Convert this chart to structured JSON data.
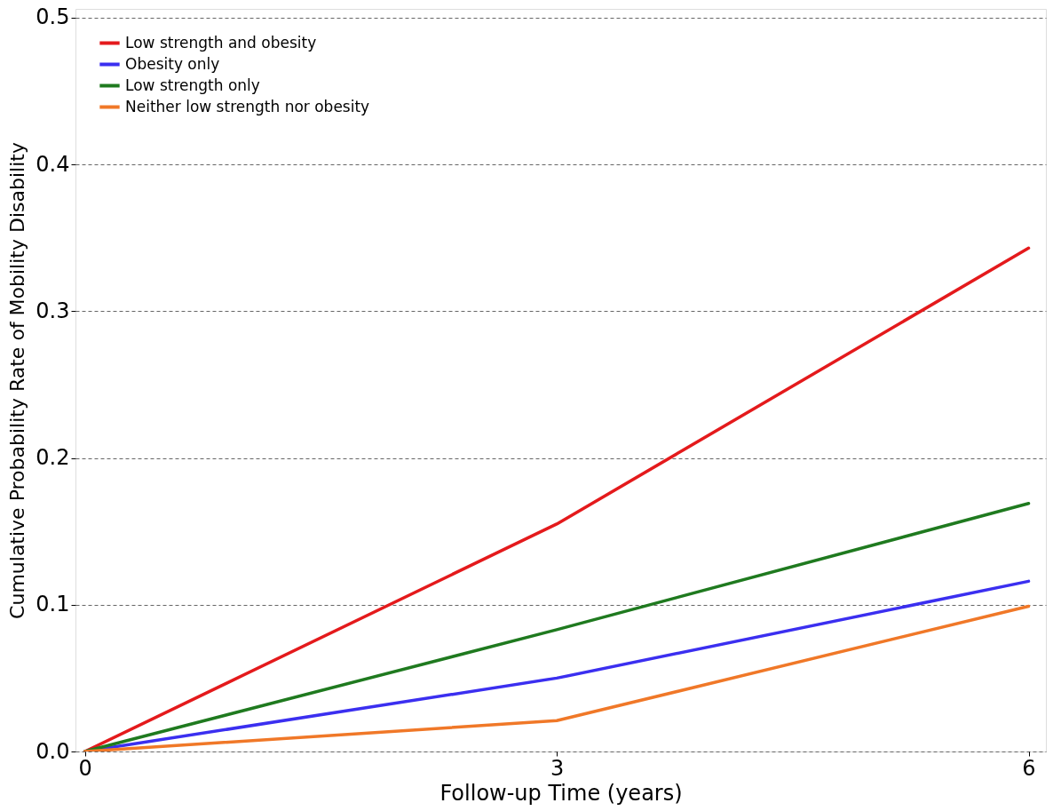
{
  "chart_data": {
    "type": "line",
    "xlabel": "Follow-up Time (years)",
    "ylabel": "Cumulative Probability Rate of Mobility Disability",
    "x": [
      0,
      3,
      6
    ],
    "series": [
      {
        "name": "Low strength and obesity",
        "color": "#e41a1c",
        "values": [
          0.0,
          0.155,
          0.343
        ]
      },
      {
        "name": "Obesity only",
        "color": "#3b2ff0",
        "values": [
          0.0,
          0.05,
          0.116
        ]
      },
      {
        "name": "Low strength only",
        "color": "#1f7a1f",
        "values": [
          0.0,
          0.083,
          0.169
        ]
      },
      {
        "name": "Neither low strength nor obesity",
        "color": "#f07828",
        "values": [
          0.0,
          0.021,
          0.099
        ]
      }
    ],
    "xlim": [
      -0.06,
      6.11
    ],
    "ylim": [
      0,
      0.506
    ],
    "xticks": [
      0,
      3,
      6
    ],
    "yticks": [
      {
        "value": 0,
        "label": "0.0"
      },
      {
        "value": 0.1,
        "label": "0.1"
      },
      {
        "value": 0.2,
        "label": "0.2"
      },
      {
        "value": 0.3,
        "label": "0.3"
      },
      {
        "value": 0.4,
        "label": "0.4"
      },
      {
        "value": 0.5,
        "label": "0.5"
      }
    ],
    "grid": "y",
    "legend": "top left",
    "marker": "none",
    "line_style": "solid"
  }
}
